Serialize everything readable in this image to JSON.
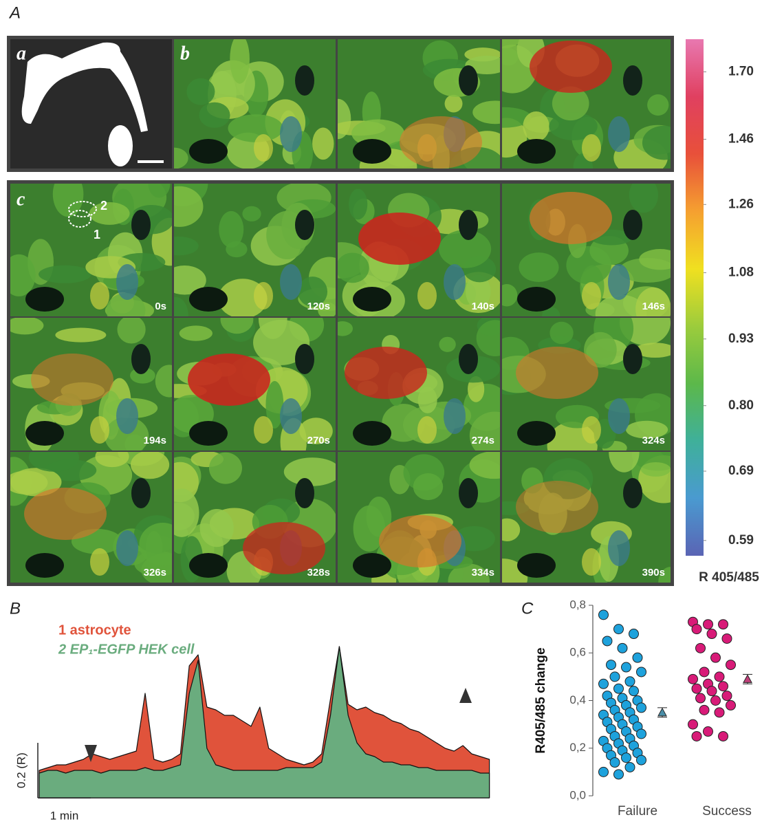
{
  "figure": {
    "panel_labels": [
      "A",
      "B",
      "C"
    ],
    "image_labels": [
      "a",
      "b",
      "c"
    ],
    "roi_labels": [
      "1",
      "2"
    ],
    "time_labels": [
      "0s",
      "120s",
      "140s",
      "146s",
      "194s",
      "270s",
      "274s",
      "324s",
      "326s",
      "328s",
      "334s",
      "390s"
    ]
  },
  "chart_data": [
    {
      "type": "colorbar",
      "label": "R 405/485",
      "log": true,
      "ylim": [
        0.57,
        1.83
      ],
      "yticks": [
        0.59,
        0.69,
        {
          "value": 0.8,
          "label": "0.80"
        },
        0.93,
        1.08,
        1.26,
        1.46,
        {
          "value": 1.7,
          "label": "1.70"
        }
      ],
      "colors": [
        "#5a64b4",
        "#4a9ad0",
        "#3fb09a",
        "#5cb84a",
        "#9ccc3c",
        "#f0e020",
        "#f5a030",
        "#e8503a",
        "#e04060",
        "#e878b0"
      ]
    },
    {
      "type": "area",
      "x": [
        0,
        10,
        20,
        30,
        40,
        50,
        60,
        70,
        80,
        90,
        100,
        110,
        120,
        130,
        140,
        150,
        160,
        170,
        180,
        190,
        200,
        210,
        220,
        230,
        240,
        250,
        260,
        270,
        280,
        290,
        300,
        310,
        320,
        330,
        340,
        350,
        360,
        370,
        380,
        390,
        400,
        410,
        420,
        430,
        440,
        450,
        460,
        470,
        480,
        490,
        500,
        510
      ],
      "xlim": [
        0,
        515
      ],
      "ylim": [
        0,
        0.6
      ],
      "series": [
        {
          "name": "1 astrocyte",
          "color": "#e0533b",
          "values": [
            0.1,
            0.11,
            0.12,
            0.12,
            0.13,
            0.14,
            0.16,
            0.15,
            0.14,
            0.15,
            0.16,
            0.17,
            0.38,
            0.14,
            0.13,
            0.14,
            0.16,
            0.48,
            0.52,
            0.33,
            0.32,
            0.3,
            0.3,
            0.28,
            0.26,
            0.33,
            0.18,
            0.16,
            0.14,
            0.13,
            0.12,
            0.13,
            0.16,
            0.36,
            0.55,
            0.34,
            0.32,
            0.33,
            0.31,
            0.3,
            0.28,
            0.27,
            0.25,
            0.24,
            0.22,
            0.2,
            0.18,
            0.17,
            0.19,
            0.16,
            0.15,
            0.14
          ]
        },
        {
          "name": "2 EP₁-EGFP HEK cell",
          "color": "#6aac7e",
          "values": [
            0.09,
            0.1,
            0.1,
            0.09,
            0.1,
            0.1,
            0.1,
            0.09,
            0.1,
            0.1,
            0.1,
            0.1,
            0.11,
            0.1,
            0.1,
            0.11,
            0.12,
            0.38,
            0.5,
            0.18,
            0.12,
            0.11,
            0.1,
            0.1,
            0.1,
            0.1,
            0.1,
            0.1,
            0.11,
            0.11,
            0.11,
            0.11,
            0.13,
            0.3,
            0.55,
            0.3,
            0.2,
            0.16,
            0.15,
            0.13,
            0.13,
            0.12,
            0.12,
            0.11,
            0.11,
            0.1,
            0.1,
            0.1,
            0.1,
            0.1,
            0.09,
            0.09
          ]
        }
      ],
      "xscale": {
        "value": 60,
        "label": "1 min"
      },
      "yscale": {
        "value": 0.2,
        "label": "0.2 (R)"
      }
    },
    {
      "type": "strip",
      "ylabel": "R405/485 change",
      "categories": [
        "Failure",
        "Success"
      ],
      "series": [
        {
          "color": "#1ea2dc",
          "values": [
            0.76,
            0.7,
            0.68,
            0.65,
            0.62,
            0.58,
            0.55,
            0.54,
            0.52,
            0.5,
            0.48,
            0.47,
            0.45,
            0.44,
            0.42,
            0.41,
            0.4,
            0.39,
            0.38,
            0.37,
            0.36,
            0.35,
            0.34,
            0.33,
            0.32,
            0.31,
            0.3,
            0.29,
            0.28,
            0.27,
            0.26,
            0.25,
            0.24,
            0.23,
            0.22,
            0.21,
            0.2,
            0.19,
            0.18,
            0.17,
            0.16,
            0.15,
            0.14,
            0.12,
            0.1,
            0.09
          ]
        },
        {
          "color": "#d81b78",
          "values": [
            0.73,
            0.72,
            0.72,
            0.7,
            0.68,
            0.66,
            0.62,
            0.58,
            0.55,
            0.52,
            0.5,
            0.49,
            0.47,
            0.46,
            0.45,
            0.44,
            0.42,
            0.41,
            0.4,
            0.38,
            0.36,
            0.35,
            0.3,
            0.27,
            0.25,
            0.25
          ]
        }
      ],
      "means": [
        0.35,
        0.49
      ],
      "errors": [
        0.02,
        0.02
      ],
      "mean_colors": [
        "#4a8ea8",
        "#c0407a"
      ],
      "ylim": [
        0,
        0.8
      ],
      "yticks": [
        {
          "value": 0,
          "label": "0,0"
        },
        {
          "value": 0.2,
          "label": "0,2"
        },
        {
          "value": 0.4,
          "label": "0,4"
        },
        {
          "value": 0.6,
          "label": "0,6"
        },
        {
          "value": 0.8,
          "label": "0,8"
        }
      ]
    }
  ]
}
